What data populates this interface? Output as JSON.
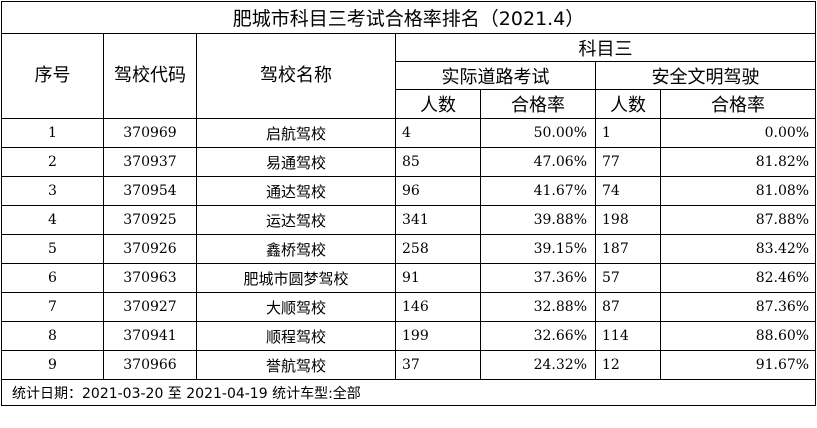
{
  "title": "肥城市科目三考试合格率排名（2021.4）",
  "headers": {
    "seq": "序号",
    "code": "驾校代码",
    "name": "驾校名称",
    "subject": "科目三",
    "road_test": "实际道路考试",
    "safe_driving": "安全文明驾驶",
    "count": "人数",
    "pass_rate": "合格率"
  },
  "rows": [
    {
      "seq": "1",
      "code": "370969",
      "name": "启航驾校",
      "road_count": "4",
      "road_rate": "50.00%",
      "safe_count": "1",
      "safe_rate": "0.00%"
    },
    {
      "seq": "2",
      "code": "370937",
      "name": "易通驾校",
      "road_count": "85",
      "road_rate": "47.06%",
      "safe_count": "77",
      "safe_rate": "81.82%"
    },
    {
      "seq": "3",
      "code": "370954",
      "name": "通达驾校",
      "road_count": "96",
      "road_rate": "41.67%",
      "safe_count": "74",
      "safe_rate": "81.08%"
    },
    {
      "seq": "4",
      "code": "370925",
      "name": "运达驾校",
      "road_count": "341",
      "road_rate": "39.88%",
      "safe_count": "198",
      "safe_rate": "87.88%"
    },
    {
      "seq": "5",
      "code": "370926",
      "name": "鑫桥驾校",
      "road_count": "258",
      "road_rate": "39.15%",
      "safe_count": "187",
      "safe_rate": "83.42%"
    },
    {
      "seq": "6",
      "code": "370963",
      "name": "肥城市圆梦驾校",
      "road_count": "91",
      "road_rate": "37.36%",
      "safe_count": "57",
      "safe_rate": "82.46%"
    },
    {
      "seq": "7",
      "code": "370927",
      "name": "大顺驾校",
      "road_count": "146",
      "road_rate": "32.88%",
      "safe_count": "87",
      "safe_rate": "87.36%"
    },
    {
      "seq": "8",
      "code": "370941",
      "name": "顺程驾校",
      "road_count": "199",
      "road_rate": "32.66%",
      "safe_count": "114",
      "safe_rate": "88.60%"
    },
    {
      "seq": "9",
      "code": "370966",
      "name": "誉航驾校",
      "road_count": "37",
      "road_rate": "24.32%",
      "safe_count": "12",
      "safe_rate": "91.67%"
    }
  ],
  "footer": "统计日期：2021-03-20 至 2021-04-19 统计车型:全部"
}
